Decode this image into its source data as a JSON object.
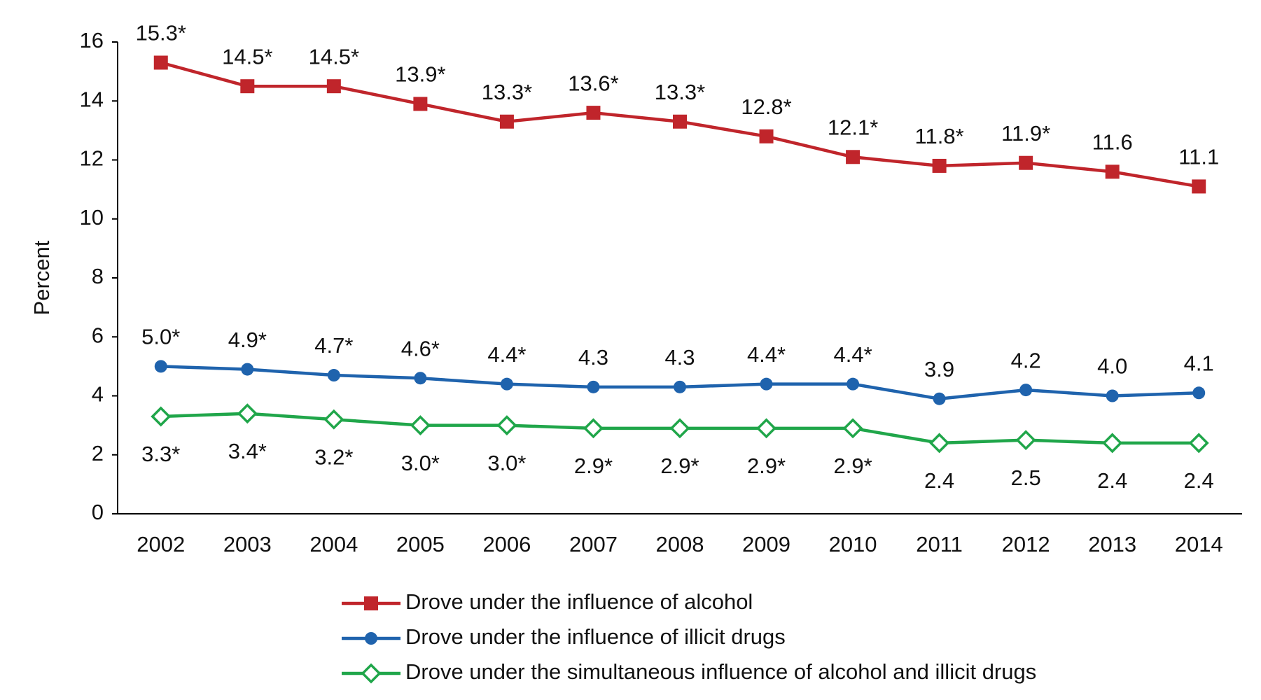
{
  "chart_data": {
    "type": "line",
    "y_label": "Percent",
    "categories": [
      "2002",
      "2003",
      "2004",
      "2005",
      "2006",
      "2007",
      "2008",
      "2009",
      "2010",
      "2011",
      "2012",
      "2013",
      "2014"
    ],
    "ylim": [
      0,
      16
    ],
    "yticks": [
      0,
      2,
      4,
      6,
      8,
      10,
      12,
      14,
      16
    ],
    "grid": false,
    "series": [
      {
        "name": "Drove under the influence of alcohol",
        "color": "#c0252b",
        "marker": "square",
        "label_position": "above",
        "values": [
          15.3,
          14.5,
          14.5,
          13.9,
          13.3,
          13.6,
          13.3,
          12.8,
          12.1,
          11.8,
          11.9,
          11.6,
          11.1
        ],
        "value_labels": [
          "15.3*",
          "14.5*",
          "14.5*",
          "13.9*",
          "13.3*",
          "13.6*",
          "13.3*",
          "12.8*",
          "12.1*",
          "11.8*",
          "11.9*",
          "11.6",
          "11.1"
        ]
      },
      {
        "name": "Drove under the influence of illicit drugs",
        "color": "#1f63ad",
        "marker": "circle",
        "label_position": "above",
        "values": [
          5.0,
          4.9,
          4.7,
          4.6,
          4.4,
          4.3,
          4.3,
          4.4,
          4.4,
          3.9,
          4.2,
          4.0,
          4.1
        ],
        "value_labels": [
          "5.0*",
          "4.9*",
          "4.7*",
          "4.6*",
          "4.4*",
          "4.3",
          "4.3",
          "4.4*",
          "4.4*",
          "3.9",
          "4.2",
          "4.0",
          "4.1"
        ]
      },
      {
        "name": "Drove under the simultaneous influence of alcohol and illicit drugs",
        "color": "#20a64a",
        "marker": "diamond",
        "label_position": "below",
        "values": [
          3.3,
          3.4,
          3.2,
          3.0,
          3.0,
          2.9,
          2.9,
          2.9,
          2.9,
          2.4,
          2.5,
          2.4,
          2.4
        ],
        "value_labels": [
          "3.3*",
          "3.4*",
          "3.2*",
          "3.0*",
          "3.0*",
          "2.9*",
          "2.9*",
          "2.9*",
          "2.9*",
          "2.4",
          "2.5",
          "2.4",
          "2.4"
        ]
      }
    ]
  }
}
